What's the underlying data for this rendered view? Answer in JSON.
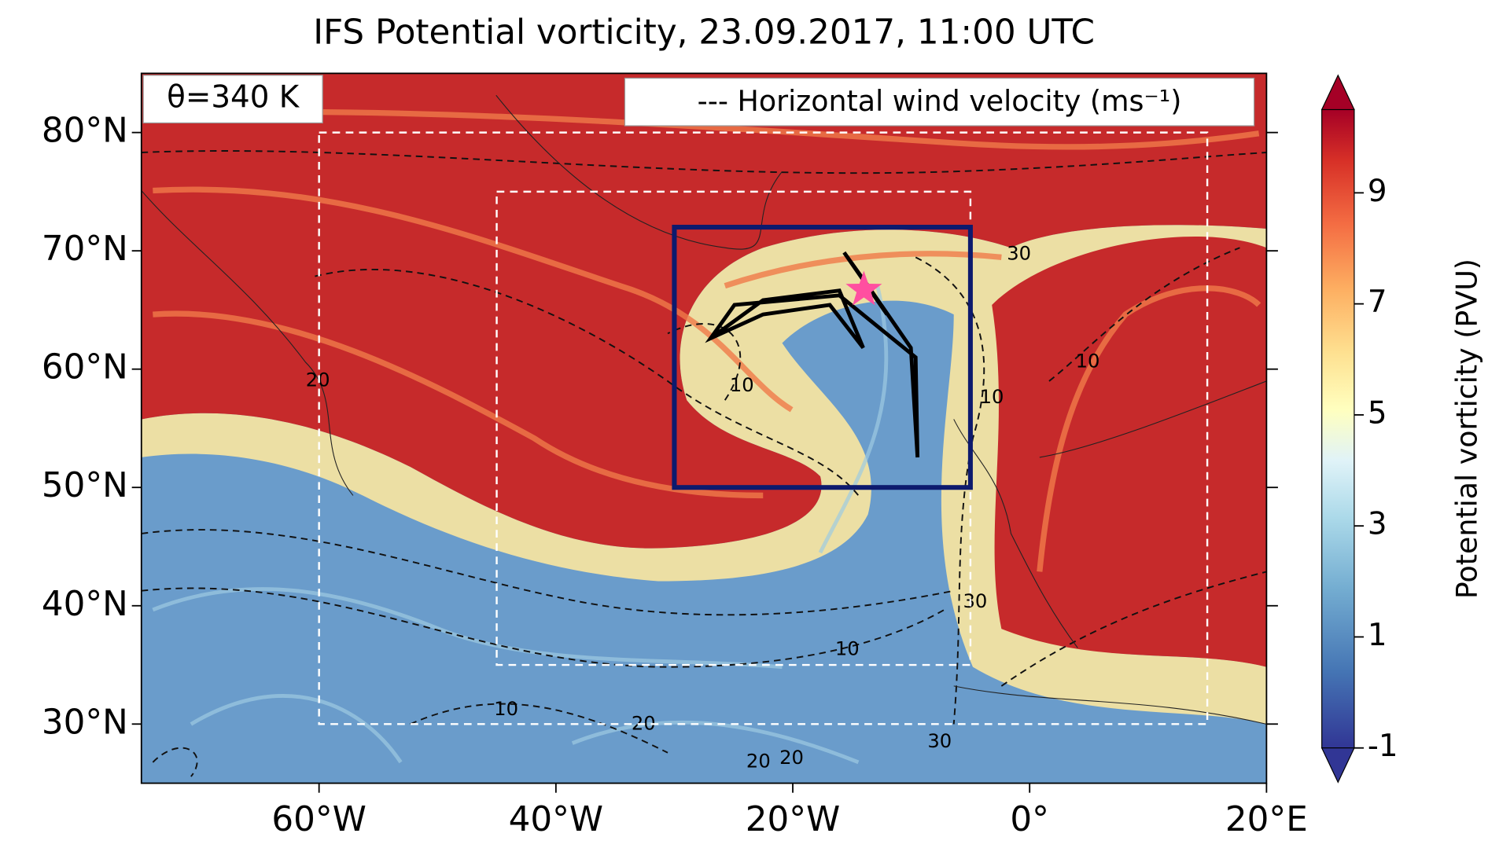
{
  "chart_data": {
    "type": "map",
    "title": "IFS Potential vorticity, 23.09.2017, 11:00 UTC",
    "annotations": [
      "θ=340 K",
      "--- Horizontal wind velocity (ms⁻¹)"
    ],
    "xlim": [
      -75,
      20
    ],
    "ylim": [
      25,
      85
    ],
    "xticks": [
      {
        "value": -60,
        "label": "60°W"
      },
      {
        "value": -40,
        "label": "40°W"
      },
      {
        "value": -20,
        "label": "20°W"
      },
      {
        "value": 0,
        "label": "0°"
      },
      {
        "value": 20,
        "label": "20°E"
      }
    ],
    "yticks": [
      {
        "value": 30,
        "label": "30°N"
      },
      {
        "value": 40,
        "label": "40°N"
      },
      {
        "value": 50,
        "label": "50°N"
      },
      {
        "value": 60,
        "label": "60°N"
      },
      {
        "value": 70,
        "label": "70°N"
      },
      {
        "value": 80,
        "label": "80°N"
      }
    ],
    "colorbar": {
      "label": "Potential vorticity (PVU)",
      "clim": [
        -1,
        10.5
      ],
      "ticks": [
        -1,
        1,
        3,
        5,
        7,
        9
      ]
    },
    "regions": [
      {
        "lon": [
          -60,
          15
        ],
        "lat": [
          30,
          80
        ],
        "color": "#ffffff",
        "style": "dashed"
      },
      {
        "lon": [
          -45,
          -5
        ],
        "lat": [
          35,
          75
        ],
        "color": "#ffffff",
        "style": "dashed"
      },
      {
        "lon": [
          -30,
          -5
        ],
        "lat": [
          50,
          72
        ],
        "color": "#0d1a6e",
        "style": "solid"
      }
    ],
    "marker": {
      "lon": -14,
      "lat": 66.7,
      "color": "#ff4fa0"
    },
    "contour_labels": [
      {
        "text": "30",
        "lon": -0.9,
        "lat": 69.7
      },
      {
        "text": "20",
        "lon": -60.1,
        "lat": 59.0
      },
      {
        "text": "10",
        "lon": -24.3,
        "lat": 58.6
      },
      {
        "text": "10",
        "lon": -3.2,
        "lat": 57.6
      },
      {
        "text": "10",
        "lon": 4.9,
        "lat": 60.6
      },
      {
        "text": "30",
        "lon": -4.6,
        "lat": 40.3
      },
      {
        "text": "10",
        "lon": -15.4,
        "lat": 36.3
      },
      {
        "text": "10",
        "lon": -44.2,
        "lat": 31.2
      },
      {
        "text": "20",
        "lon": -32.6,
        "lat": 30.0
      },
      {
        "text": "30",
        "lon": -7.6,
        "lat": 28.5
      },
      {
        "text": "20",
        "lon": -20.1,
        "lat": 27.1
      },
      {
        "text": "20",
        "lon": -22.9,
        "lat": 26.8
      }
    ]
  }
}
